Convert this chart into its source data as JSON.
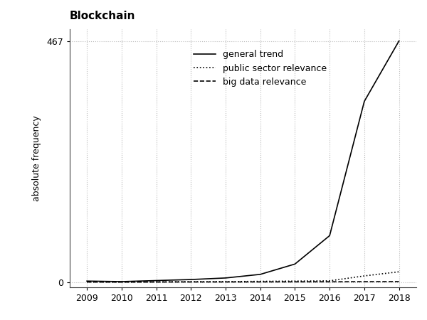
{
  "title": "Blockchain",
  "ylabel": "absolute frequency",
  "xlabel": "",
  "years": [
    2009,
    2010,
    2011,
    2012,
    2013,
    2014,
    2015,
    2016,
    2017,
    2018
  ],
  "general_trend": [
    2,
    1,
    3,
    5,
    8,
    15,
    35,
    90,
    350,
    467
  ],
  "public_sector": [
    0.5,
    0.3,
    0.5,
    0.8,
    1.0,
    1.5,
    2.0,
    2.5,
    12,
    20
  ],
  "big_data": [
    0.2,
    0.1,
    0.2,
    0.3,
    0.3,
    0.4,
    0.5,
    0.6,
    0.8,
    1.0
  ],
  "ytick_label": 467,
  "background_color": "#ffffff",
  "grid_color": "#bbbbbb",
  "line_color": "#000000",
  "legend_labels": [
    "general trend",
    "public sector relevance",
    "big data relevance"
  ]
}
